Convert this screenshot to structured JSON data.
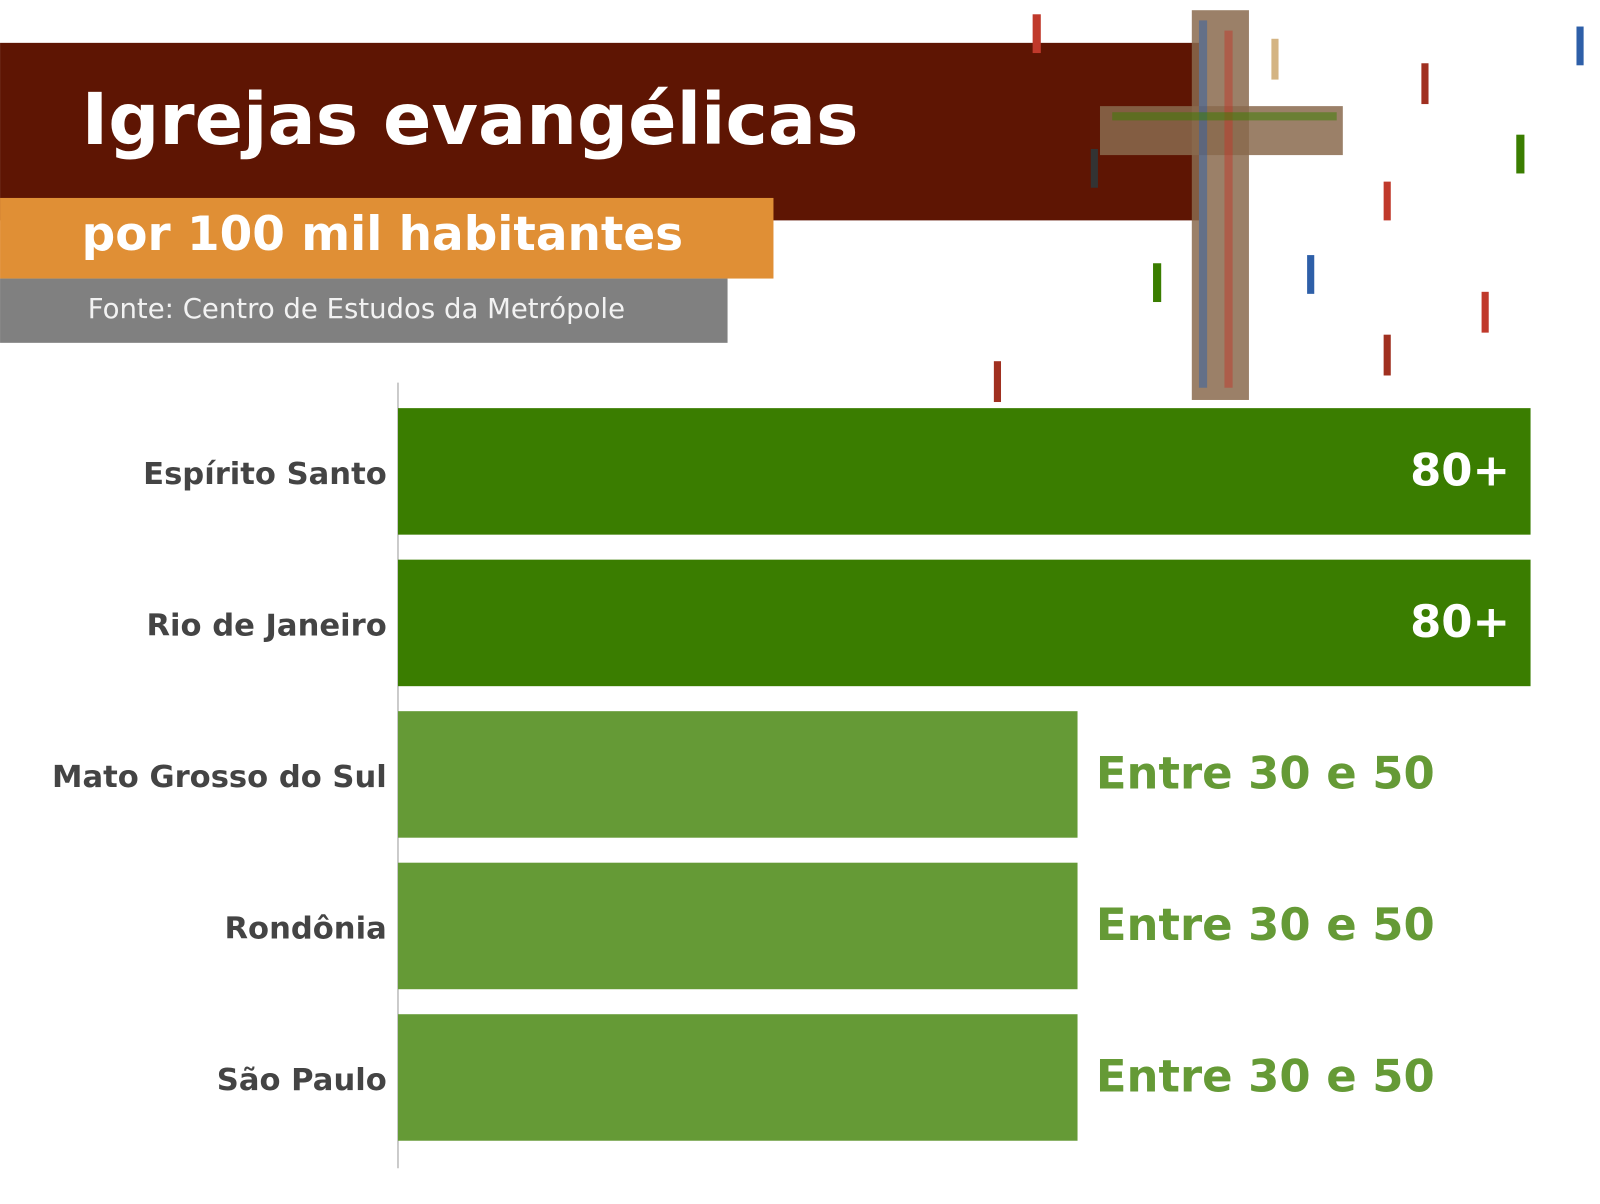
{
  "chart_data": {
    "type": "bar",
    "orientation": "horizontal",
    "title": "Igrejas evangélicas",
    "subtitle": "por 100 mil habitantes",
    "source": "Fonte: Centro de Estudos da Metrópole",
    "categories": [
      "Espírito Santo",
      "Rio de Janeiro",
      "Mato Grosso do Sul",
      "Rondônia",
      "São Paulo"
    ],
    "values": [
      80,
      80,
      48,
      48,
      48
    ],
    "value_labels": [
      "80+",
      "80+",
      "Entre 30 e 50",
      "Entre 30 e 50",
      "Entre 30 e 50"
    ],
    "colors": [
      "#3a7d00",
      "#3a7d00",
      "#659a36",
      "#659a36",
      "#659a36"
    ],
    "xlim": [
      0,
      80
    ]
  }
}
